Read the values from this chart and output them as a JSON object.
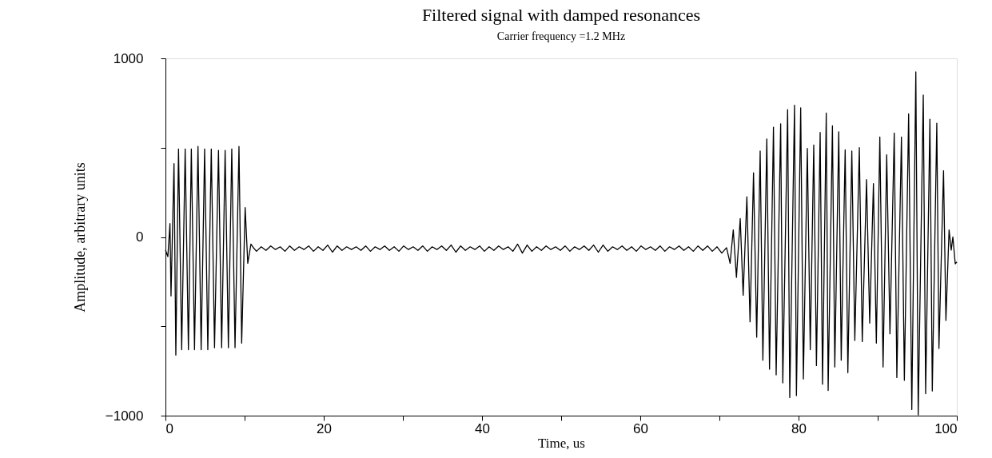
{
  "chart_data": {
    "type": "line",
    "title": "Filtered signal with damped resonances",
    "subtitle": "Carrier frequency =1.2 MHz",
    "xlabel": "Time, us",
    "ylabel": "Amplitude, arbitrary units",
    "xlim": [
      0,
      100
    ],
    "ylim": [
      -1000,
      1000
    ],
    "xticks": [
      0,
      {
        "value": 10,
        "label": null
      },
      20,
      {
        "value": 30,
        "label": null
      },
      40,
      {
        "value": 50,
        "label": null
      },
      60,
      {
        "value": 70,
        "label": null
      },
      80,
      {
        "value": 90,
        "label": null
      },
      100
    ],
    "yticks": [
      -1000,
      {
        "value": -500,
        "label": null
      },
      0,
      {
        "value": 500,
        "label": null
      },
      1000
    ],
    "grid": false,
    "marker": "none",
    "line_style": "solid",
    "x": [
      0,
      0.3,
      0.57,
      0.7,
      1.08,
      1.31,
      1.65,
      2.05,
      2.49,
      2.9,
      3.27,
      3.67,
      4.11,
      4.51,
      4.95,
      5.35,
      5.79,
      6.2,
      6.7,
      7.1,
      7.54,
      7.95,
      8.38,
      8.79,
      9.29,
      9.63,
      10.07,
      10.4,
      10.8,
      11.08,
      11.5,
      12.1,
      12.7,
      13.3,
      13.9,
      14.5,
      15.1,
      15.7,
      16.3,
      16.9,
      17.5,
      18.1,
      18.7,
      19.3,
      19.9,
      20.5,
      21.1,
      21.7,
      22.3,
      22.9,
      23.5,
      24.1,
      24.7,
      25.3,
      25.9,
      26.5,
      27.1,
      27.7,
      28.3,
      28.9,
      29.5,
      30.1,
      30.7,
      31.3,
      31.9,
      32.5,
      33.1,
      33.7,
      34.3,
      34.9,
      35.5,
      36.1,
      36.7,
      37.3,
      37.9,
      38.5,
      39.1,
      39.7,
      40.3,
      40.9,
      41.5,
      42.1,
      42.7,
      43.3,
      43.9,
      44.5,
      45.1,
      45.7,
      46.3,
      46.9,
      47.5,
      48.1,
      48.7,
      49.3,
      49.9,
      50.5,
      51.1,
      51.7,
      52.3,
      52.9,
      53.5,
      54.1,
      54.7,
      55.3,
      55.9,
      56.5,
      57.1,
      57.7,
      58.3,
      58.9,
      59.5,
      60.1,
      60.7,
      61.3,
      61.9,
      62.5,
      63.1,
      63.7,
      64.3,
      64.9,
      65.5,
      66.1,
      66.7,
      67.3,
      67.9,
      68.5,
      69.1,
      69.7,
      70.3,
      70.9,
      71.35,
      71.75,
      72.15,
      72.63,
      73.0,
      73.47,
      73.87,
      74.31,
      74.71,
      75.15,
      75.49,
      75.99,
      76.33,
      76.83,
      77.17,
      77.74,
      78.01,
      78.62,
      78.89,
      79.49,
      79.73,
      80.27,
      80.61,
      81.11,
      81.48,
      81.92,
      82.26,
      82.73,
      83.03,
      83.5,
      83.74,
      84.28,
      84.58,
      85.08,
      85.39,
      85.89,
      86.23,
      86.73,
      87.11,
      87.68,
      88.05,
      88.59,
      88.99,
      89.46,
      89.83,
      90.27,
      90.68,
      91.14,
      91.55,
      92.09,
      92.42,
      93.0,
      93.37,
      93.91,
      94.31,
      94.82,
      95.12,
      95.76,
      96.06,
      96.6,
      96.9,
      97.47,
      97.74,
      98.32,
      98.62,
      99.02,
      99.29,
      99.5,
      99.8,
      100
    ],
    "series": [
      {
        "color": "#000000",
        "values": [
          -73,
          -110,
          75,
          -330,
          411,
          -661,
          493,
          -631,
          493,
          -631,
          493,
          -631,
          507,
          -631,
          493,
          -631,
          493,
          -620,
          485,
          -620,
          485,
          -620,
          493,
          -620,
          507,
          -594,
          165,
          -147,
          -40,
          -58,
          -80,
          -55,
          -75,
          -50,
          -70,
          -55,
          -80,
          -50,
          -75,
          -55,
          -70,
          -50,
          -80,
          -55,
          -75,
          -45,
          -85,
          -50,
          -75,
          -55,
          -70,
          -55,
          -75,
          -50,
          -80,
          -55,
          -70,
          -50,
          -75,
          -55,
          -80,
          -50,
          -70,
          -55,
          -75,
          -50,
          -80,
          -55,
          -70,
          -50,
          -75,
          -45,
          -85,
          -50,
          -75,
          -55,
          -70,
          -50,
          -80,
          -55,
          -75,
          -50,
          -70,
          -55,
          -80,
          -40,
          -90,
          -45,
          -80,
          -55,
          -75,
          -50,
          -70,
          -55,
          -75,
          -50,
          -80,
          -55,
          -70,
          -50,
          -75,
          -45,
          -85,
          -45,
          -80,
          -55,
          -70,
          -50,
          -75,
          -55,
          -80,
          -50,
          -70,
          -55,
          -75,
          -50,
          -80,
          -55,
          -70,
          -50,
          -75,
          -55,
          -80,
          -50,
          -75,
          -50,
          -80,
          -55,
          -90,
          -60,
          -147,
          40,
          -226,
          103,
          -326,
          225,
          -475,
          359,
          -561,
          481,
          -690,
          549,
          -740,
          615,
          -772,
          634,
          -817,
          713,
          -899,
          738,
          -888,
          723,
          -795,
          496,
          -631,
          515,
          -720,
          585,
          -824,
          694,
          -859,
          622,
          -728,
          589,
          -690,
          488,
          -760,
          481,
          -579,
          500,
          -586,
          321,
          -482,
          299,
          -594,
          560,
          -728,
          460,
          -542,
          582,
          -787,
          560,
          -802,
          690,
          -966,
          924,
          -996,
          795,
          -877,
          659,
          -862,
          637,
          -624,
          371,
          -467,
          40,
          -73,
          0,
          -150,
          -140
        ]
      }
    ]
  }
}
